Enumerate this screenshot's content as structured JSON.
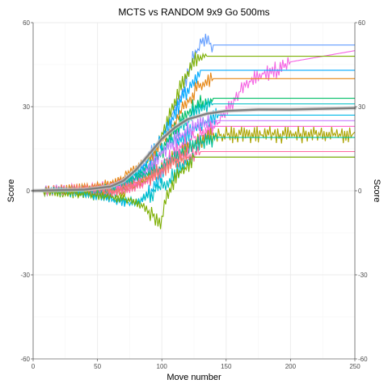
{
  "chart_data": {
    "type": "line",
    "title": "MCTS vs RANDOM 9x9 Go 500ms",
    "xlabel": "Move number",
    "ylabel": "Score",
    "ylabel_right": "Score",
    "xlim": [
      0,
      250
    ],
    "ylim": [
      -60,
      60
    ],
    "x_ticks": [
      0,
      50,
      100,
      150,
      200,
      250
    ],
    "y_ticks": [
      -60,
      -30,
      0,
      30,
      60
    ],
    "grid": true,
    "legend": "none",
    "series": [
      {
        "color": "#619CFF",
        "points": [
          [
            0,
            0
          ],
          [
            20,
            1
          ],
          [
            40,
            -1
          ],
          [
            60,
            2
          ],
          [
            80,
            6
          ],
          [
            100,
            18
          ],
          [
            115,
            35
          ],
          [
            125,
            48
          ],
          [
            133,
            54
          ],
          [
            140,
            52
          ],
          [
            250,
            52
          ]
        ]
      },
      {
        "color": "#F564E3",
        "points": [
          [
            0,
            0
          ],
          [
            30,
            1
          ],
          [
            60,
            2
          ],
          [
            90,
            6
          ],
          [
            120,
            14
          ],
          [
            140,
            22
          ],
          [
            150,
            28
          ],
          [
            160,
            35
          ],
          [
            170,
            40
          ],
          [
            180,
            42
          ],
          [
            195,
            44
          ],
          [
            200,
            46
          ],
          [
            250,
            50
          ]
        ]
      },
      {
        "color": "#7CAE00",
        "points": [
          [
            0,
            0
          ],
          [
            25,
            -1
          ],
          [
            50,
            -2
          ],
          [
            80,
            2
          ],
          [
            100,
            20
          ],
          [
            115,
            38
          ],
          [
            125,
            47
          ],
          [
            135,
            48
          ],
          [
            250,
            48
          ]
        ]
      },
      {
        "color": "#00A9FF",
        "points": [
          [
            0,
            0
          ],
          [
            30,
            0
          ],
          [
            60,
            -1
          ],
          [
            85,
            8
          ],
          [
            100,
            18
          ],
          [
            115,
            32
          ],
          [
            125,
            40
          ],
          [
            130,
            43
          ],
          [
            250,
            43
          ]
        ]
      },
      {
        "color": "#E68613",
        "points": [
          [
            0,
            0
          ],
          [
            35,
            1
          ],
          [
            65,
            3
          ],
          [
            90,
            12
          ],
          [
            105,
            20
          ],
          [
            120,
            32
          ],
          [
            130,
            38
          ],
          [
            140,
            40
          ],
          [
            250,
            40
          ]
        ]
      },
      {
        "color": "#00BE67",
        "points": [
          [
            0,
            0
          ],
          [
            40,
            0
          ],
          [
            70,
            1
          ],
          [
            95,
            10
          ],
          [
            110,
            22
          ],
          [
            125,
            30
          ],
          [
            140,
            33
          ],
          [
            250,
            33
          ]
        ]
      },
      {
        "color": "#00BFC4",
        "points": [
          [
            0,
            0
          ],
          [
            30,
            -1
          ],
          [
            60,
            0
          ],
          [
            90,
            9
          ],
          [
            110,
            20
          ],
          [
            125,
            28
          ],
          [
            140,
            31
          ],
          [
            250,
            31
          ]
        ]
      },
      {
        "color": "#00B8E7",
        "points": [
          [
            0,
            0
          ],
          [
            30,
            0
          ],
          [
            60,
            -3
          ],
          [
            80,
            -5
          ],
          [
            95,
            1
          ],
          [
            105,
            10
          ],
          [
            115,
            18
          ],
          [
            130,
            24
          ],
          [
            145,
            27
          ],
          [
            250,
            27
          ]
        ]
      },
      {
        "color": "#C77CFF",
        "points": [
          [
            0,
            0
          ],
          [
            30,
            0
          ],
          [
            60,
            1
          ],
          [
            85,
            5
          ],
          [
            100,
            14
          ],
          [
            120,
            22
          ],
          [
            140,
            25
          ],
          [
            250,
            25
          ]
        ]
      },
      {
        "color": "#FF61CC",
        "points": [
          [
            0,
            0
          ],
          [
            35,
            0
          ],
          [
            65,
            1
          ],
          [
            90,
            4
          ],
          [
            105,
            12
          ],
          [
            125,
            19
          ],
          [
            140,
            23
          ],
          [
            250,
            23
          ]
        ]
      },
      {
        "color": "#ABA300",
        "points": [
          [
            0,
            0
          ],
          [
            40,
            0
          ],
          [
            70,
            -1
          ],
          [
            95,
            6
          ],
          [
            115,
            14
          ],
          [
            135,
            19
          ],
          [
            150,
            20
          ],
          [
            248,
            20
          ],
          [
            250,
            21
          ]
        ]
      },
      {
        "color": "#00C19A",
        "points": [
          [
            0,
            0
          ],
          [
            30,
            0
          ],
          [
            60,
            1
          ],
          [
            90,
            6
          ],
          [
            110,
            12
          ],
          [
            130,
            17
          ],
          [
            145,
            19
          ],
          [
            250,
            19
          ]
        ]
      },
      {
        "color": "#FF68A1",
        "points": [
          [
            0,
            0
          ],
          [
            30,
            0
          ],
          [
            60,
            -1
          ],
          [
            85,
            2
          ],
          [
            100,
            8
          ],
          [
            115,
            12
          ],
          [
            130,
            14
          ],
          [
            250,
            14
          ]
        ]
      },
      {
        "color": "#F8766D",
        "points": [
          [
            0,
            0
          ],
          [
            35,
            1
          ],
          [
            65,
            0
          ],
          [
            90,
            5
          ],
          [
            105,
            9
          ],
          [
            120,
            12
          ],
          [
            250,
            12
          ]
        ]
      },
      {
        "color": "#00BFC4",
        "points": [
          [
            0,
            0
          ],
          [
            30,
            0
          ],
          [
            60,
            -2
          ],
          [
            80,
            -4
          ],
          [
            95,
            0
          ],
          [
            110,
            6
          ],
          [
            125,
            12
          ],
          [
            250,
            12
          ]
        ]
      },
      {
        "color": "#7CAE00",
        "points": [
          [
            0,
            0
          ],
          [
            40,
            -1
          ],
          [
            70,
            -3
          ],
          [
            85,
            -5
          ],
          [
            95,
            -10
          ],
          [
            100,
            -12
          ],
          [
            102,
            -4
          ],
          [
            110,
            4
          ],
          [
            125,
            12
          ],
          [
            250,
            12
          ]
        ]
      }
    ],
    "trend": {
      "color": "#7f7f7f",
      "points": [
        [
          0,
          0
        ],
        [
          40,
          0.4
        ],
        [
          60,
          1.5
        ],
        [
          70,
          3.5
        ],
        [
          80,
          7.5
        ],
        [
          90,
          13
        ],
        [
          100,
          18.5
        ],
        [
          110,
          22.5
        ],
        [
          120,
          25.5
        ],
        [
          135,
          27.5
        ],
        [
          150,
          28.5
        ],
        [
          175,
          29
        ],
        [
          200,
          29
        ],
        [
          250,
          29.5
        ]
      ]
    }
  }
}
